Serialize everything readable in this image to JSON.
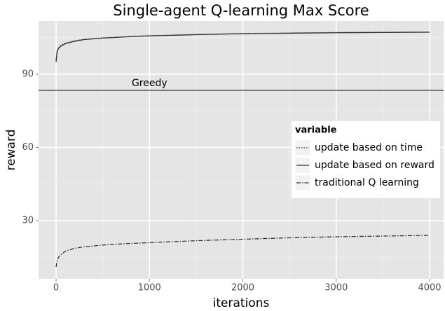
{
  "chart_data": {
    "type": "line",
    "title": "Single-agent Q-learning Max Score",
    "x_label": "iterations",
    "y_label": "reward",
    "x": [
      0,
      10,
      25,
      50,
      100,
      200,
      300,
      500,
      750,
      1000,
      1500,
      2000,
      2500,
      3000,
      3500,
      4000
    ],
    "series": [
      {
        "name": "update based on time",
        "color": "#333333",
        "dash": "dotted",
        "values": [
          96,
          99.5,
          100.8,
          101.8,
          102.8,
          103.7,
          104.3,
          104.9,
          105.4,
          105.8,
          106.3,
          106.7,
          106.9,
          107.1,
          107.2,
          107.3
        ]
      },
      {
        "name": "update based on reward",
        "color": "#333333",
        "dash": "solid",
        "values": [
          95,
          99,
          100.5,
          101.5,
          102.5,
          103.5,
          104.2,
          104.8,
          105.3,
          105.7,
          106.2,
          106.6,
          106.8,
          107,
          107.1,
          107.2
        ]
      },
      {
        "name": "traditional Q learning",
        "color": "#333333",
        "dash": "dotdash",
        "values": [
          11,
          13.5,
          15,
          16,
          17.5,
          18.7,
          19.3,
          20,
          20.6,
          21,
          21.8,
          22.4,
          23,
          23.4,
          23.7,
          24
        ]
      }
    ],
    "hline": {
      "label": "Greedy",
      "value": 83.4,
      "color": "#555555"
    },
    "legend_title": "variable",
    "legend": "right",
    "xlim": [
      -188,
      4150
    ],
    "xticks": [
      0,
      1000,
      2000,
      3000,
      4000
    ],
    "xticks_minor": [
      500,
      1500,
      2500,
      3500
    ],
    "ylim": [
      6.2,
      111.8
    ],
    "yticks": [
      30,
      60,
      90
    ],
    "yticks_minor": [
      15,
      45,
      75,
      105
    ],
    "grid": true
  }
}
